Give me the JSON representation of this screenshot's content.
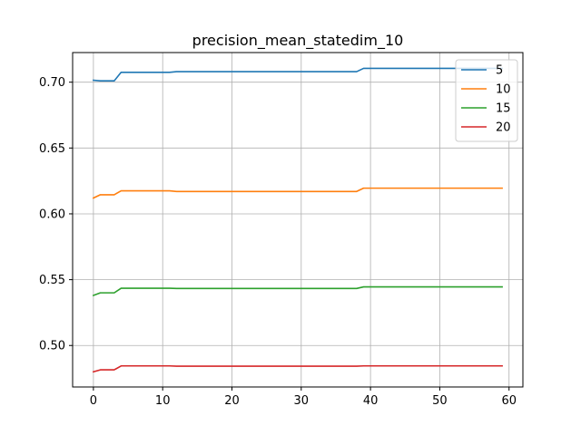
{
  "chart_data": {
    "type": "line",
    "title": "precision_mean_statedim_10",
    "xlabel": "",
    "ylabel": "",
    "xlim": [
      -3,
      62
    ],
    "ylim": [
      0.4685,
      0.7225
    ],
    "xticks": [
      0,
      10,
      20,
      30,
      40,
      50,
      60
    ],
    "yticks": [
      0.5,
      0.55,
      0.6,
      0.65,
      0.7
    ],
    "xtick_labels": [
      "0",
      "10",
      "20",
      "30",
      "40",
      "50",
      "60"
    ],
    "ytick_labels": [
      "0.50",
      "0.55",
      "0.60",
      "0.65",
      "0.70"
    ],
    "grid": true,
    "legend_position": "top-right",
    "series": [
      {
        "name": "5",
        "color": "#1f77b4",
        "points": [
          [
            0,
            0.7015
          ],
          [
            1,
            0.701
          ],
          [
            3,
            0.701
          ],
          [
            4,
            0.7075
          ],
          [
            11,
            0.7075
          ],
          [
            12,
            0.708
          ],
          [
            38,
            0.708
          ],
          [
            39,
            0.7105
          ],
          [
            59,
            0.7105
          ]
        ]
      },
      {
        "name": "10",
        "color": "#ff7f0e",
        "points": [
          [
            0,
            0.612
          ],
          [
            1,
            0.6145
          ],
          [
            3,
            0.6145
          ],
          [
            4,
            0.6175
          ],
          [
            11,
            0.6175
          ],
          [
            12,
            0.617
          ],
          [
            38,
            0.617
          ],
          [
            39,
            0.6195
          ],
          [
            59,
            0.6195
          ]
        ]
      },
      {
        "name": "15",
        "color": "#2ca02c",
        "points": [
          [
            0,
            0.538
          ],
          [
            1,
            0.54
          ],
          [
            3,
            0.54
          ],
          [
            4,
            0.5435
          ],
          [
            11,
            0.5435
          ],
          [
            12,
            0.5433
          ],
          [
            38,
            0.5433
          ],
          [
            39,
            0.5445
          ],
          [
            59,
            0.5445
          ]
        ]
      },
      {
        "name": "20",
        "color": "#d62728",
        "points": [
          [
            0,
            0.48
          ],
          [
            1,
            0.4815
          ],
          [
            3,
            0.4815
          ],
          [
            4,
            0.4845
          ],
          [
            11,
            0.4845
          ],
          [
            12,
            0.4843
          ],
          [
            38,
            0.4843
          ],
          [
            39,
            0.4845
          ],
          [
            59,
            0.4845
          ]
        ]
      }
    ]
  }
}
